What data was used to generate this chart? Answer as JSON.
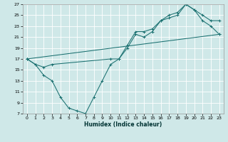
{
  "xlabel": "Humidex (Indice chaleur)",
  "background_color": "#cfe8e8",
  "grid_color": "#ffffff",
  "line_color": "#1a7070",
  "xlim": [
    -0.5,
    23.5
  ],
  "ylim": [
    7,
    27
  ],
  "xticks": [
    0,
    1,
    2,
    3,
    4,
    5,
    6,
    7,
    8,
    9,
    10,
    11,
    12,
    13,
    14,
    15,
    16,
    17,
    18,
    19,
    20,
    21,
    22,
    23
  ],
  "yticks": [
    7,
    9,
    11,
    13,
    15,
    17,
    19,
    21,
    23,
    25,
    27
  ],
  "line1_x": [
    0,
    1,
    2,
    3,
    4,
    5,
    6,
    7,
    8,
    9,
    10,
    11,
    12,
    13,
    14,
    15,
    16,
    17,
    18,
    19,
    20,
    21,
    22,
    23
  ],
  "line1_y": [
    17,
    16,
    14,
    13,
    10,
    8,
    7.5,
    7,
    10,
    13,
    16,
    17,
    19,
    21.5,
    21,
    22,
    24,
    24.5,
    25,
    27,
    26,
    24,
    23,
    21.5
  ],
  "line2_x": [
    0,
    1,
    2,
    3,
    10,
    11,
    12,
    13,
    14,
    15,
    16,
    17,
    18,
    19,
    20,
    21,
    22,
    23
  ],
  "line2_y": [
    17,
    16,
    15.5,
    16,
    17,
    17,
    19.5,
    22,
    22,
    22.5,
    24,
    25,
    25.5,
    27,
    26,
    25,
    24,
    24
  ],
  "line3_x": [
    0,
    23
  ],
  "line3_y": [
    17,
    21.5
  ]
}
